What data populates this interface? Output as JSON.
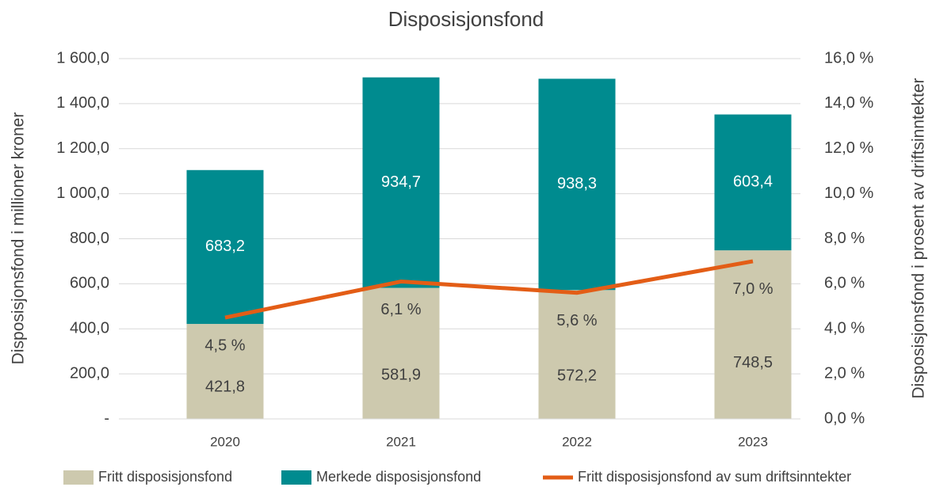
{
  "chart_data": {
    "type": "bar",
    "stacked": true,
    "title": "Disposisjonsfond",
    "y_label": "Disposisjonsfond i millioner kroner",
    "y2_label": "Disposisjonsfond i prosent av driftsinntekter",
    "categories": [
      "2020",
      "2021",
      "2022",
      "2023"
    ],
    "series": [
      {
        "name": "Fritt disposisjonsfond",
        "type": "bar",
        "color": "#cdc9ae",
        "values": [
          421.8,
          581.9,
          572.2,
          748.5
        ],
        "value_labels": [
          "421,8",
          "581,9",
          "572,2",
          "748,5"
        ]
      },
      {
        "name": "Merkede disposisjonsfond",
        "type": "bar",
        "color": "#008b8f",
        "values": [
          683.2,
          934.7,
          938.3,
          603.4
        ],
        "value_labels": [
          "683,2",
          "934,7",
          "938,3",
          "603,4"
        ]
      },
      {
        "name": "Fritt disposisjonsfond av sum driftsinntekter",
        "type": "line",
        "axis": "y2",
        "color": "#e35d16",
        "values": [
          4.5,
          6.1,
          5.6,
          7.0
        ],
        "value_labels": [
          "4,5 %",
          "6,1 %",
          "5,6 %",
          "7,0 %"
        ]
      }
    ],
    "ylim": [
      0,
      1600
    ],
    "yticks": [
      {
        "value": 0,
        "label": "-"
      },
      {
        "value": 200,
        "label": "200,0"
      },
      {
        "value": 400,
        "label": "400,0"
      },
      {
        "value": 600,
        "label": "600,0"
      },
      {
        "value": 800,
        "label": "800,0"
      },
      {
        "value": 1000,
        "label": "1 000,0"
      },
      {
        "value": 1200,
        "label": "1 200,0"
      },
      {
        "value": 1400,
        "label": "1 400,0"
      },
      {
        "value": 1600,
        "label": "1 600,0"
      }
    ],
    "y2lim": [
      0,
      16
    ],
    "y2ticks": [
      {
        "value": 0,
        "label": "0,0 %"
      },
      {
        "value": 2,
        "label": "2,0 %"
      },
      {
        "value": 4,
        "label": "4,0 %"
      },
      {
        "value": 6,
        "label": "6,0 %"
      },
      {
        "value": 8,
        "label": "8,0 %"
      },
      {
        "value": 10,
        "label": "10,0 %"
      },
      {
        "value": 12,
        "label": "12,0 %"
      },
      {
        "value": 14,
        "label": "14,0 %"
      },
      {
        "value": 16,
        "label": "16,0 %"
      }
    ],
    "grid": true,
    "legend": "bottom"
  }
}
